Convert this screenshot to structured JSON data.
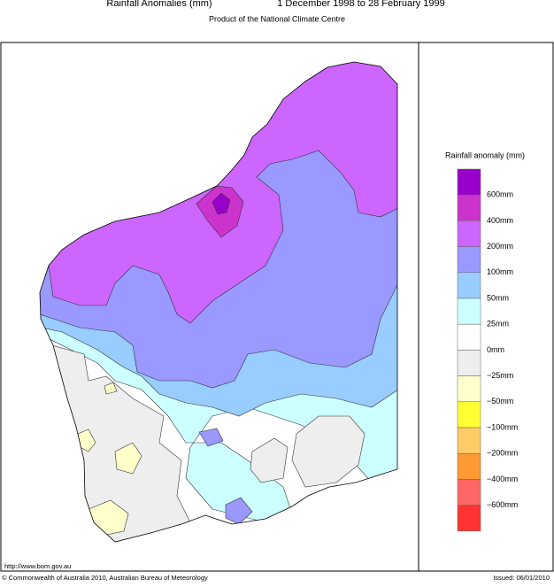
{
  "header": {
    "title": "Rainfall Anomalies (mm)",
    "period": "1 December 1998 to 28 February 1999",
    "subtitle": "Product of the National Climate Centre"
  },
  "legend": {
    "title": "Rainfall anomaly (mm)",
    "labels": [
      "600mm",
      "400mm",
      "200mm",
      "100mm",
      "50mm",
      "25mm",
      "0mm",
      "−25mm",
      "−50mm",
      "−100mm",
      "−200mm",
      "−400mm",
      "−600mm"
    ],
    "colors": [
      "#9900cc",
      "#cc33cc",
      "#cc66ff",
      "#9999ff",
      "#99ccff",
      "#ccffff",
      "#ffffff",
      "#eeeeee",
      "#ffffcc",
      "#ffff33",
      "#ffcc66",
      "#ff9933",
      "#ff6666",
      "#ff3333"
    ]
  },
  "footer": {
    "url": "http://www.bom.gov.au",
    "copyright": "© Commonwealth of Australia 2010, Australian Bureau of Meteorology",
    "issued": "Issued: 06/01/2010"
  }
}
